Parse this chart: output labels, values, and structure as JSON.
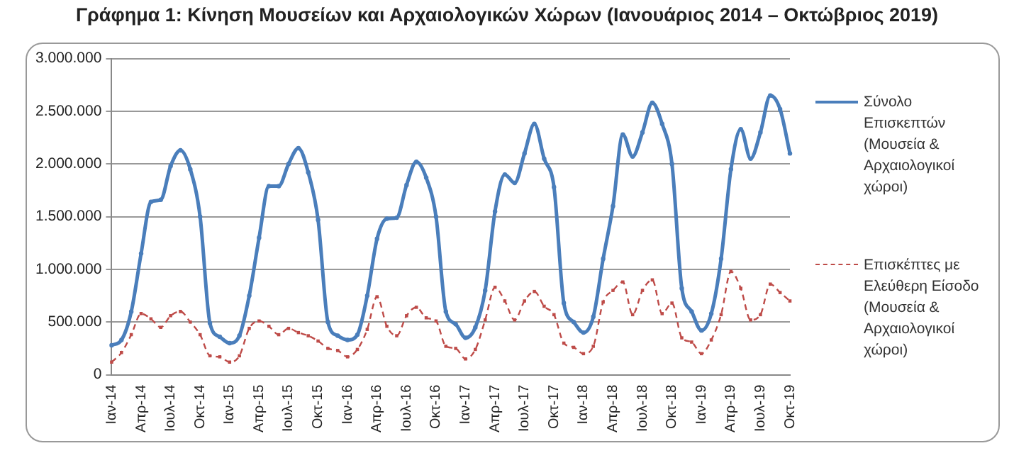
{
  "chart_data": {
    "type": "line",
    "title": "Γράφημα 1: Κίνηση Μουσείων και Αρχαιολογικών Χώρων (Ιανουάριος 2014 – Οκτώβριος 2019)",
    "categories": [
      "Ιαν-14",
      null,
      null,
      "Απρ-14",
      null,
      null,
      "Ιουλ-14",
      null,
      null,
      "Οκτ-14",
      null,
      null,
      "Ιαν-15",
      null,
      null,
      "Απρ-15",
      null,
      null,
      "Ιουλ-15",
      null,
      null,
      "Οκτ-15",
      null,
      null,
      "Ιαν-16",
      null,
      null,
      "Απρ-16",
      null,
      null,
      "Ιουλ-16",
      null,
      null,
      "Οκτ-16",
      null,
      null,
      "Ιαν-17",
      null,
      null,
      "Απρ-17",
      null,
      null,
      "Ιουλ-17",
      null,
      null,
      "Οκτ-17",
      null,
      null,
      "Ιαν-18",
      null,
      null,
      "Απρ-18",
      null,
      null,
      "Ιουλ-18",
      null,
      null,
      "Οκτ-18",
      null,
      null,
      "Ιαν-19",
      null,
      null,
      "Απρ-19",
      null,
      null,
      "Ιουλ-19",
      null,
      null,
      "Οκτ-19"
    ],
    "series": [
      {
        "name": "Σύνολο Επισκεπτών (Μουσεία & Αρχαιολογικοί χώροι)",
        "color": "#4a7ebb",
        "marker": "circle",
        "line_style": "solid",
        "values": [
          280000,
          330000,
          600000,
          1150000,
          1640000,
          1660000,
          1980000,
          2130000,
          1950000,
          1500000,
          490000,
          360000,
          300000,
          370000,
          750000,
          1300000,
          1790000,
          1790000,
          2000000,
          2150000,
          1920000,
          1470000,
          500000,
          370000,
          330000,
          380000,
          750000,
          1290000,
          1480000,
          1490000,
          1800000,
          2020000,
          1870000,
          1500000,
          600000,
          480000,
          350000,
          450000,
          800000,
          1550000,
          1900000,
          1820000,
          2100000,
          2380000,
          2050000,
          1780000,
          680000,
          500000,
          400000,
          550000,
          1100000,
          1600000,
          2280000,
          2070000,
          2300000,
          2580000,
          2380000,
          2000000,
          820000,
          600000,
          420000,
          580000,
          1100000,
          1950000,
          2330000,
          2050000,
          2300000,
          2650000,
          2520000,
          2100000
        ]
      },
      {
        "name": "Επισκέπτες με Ελεύθερη Είσοδο (Μουσεία & Αρχαιολογικοί χώροι)",
        "color": "#be4b48",
        "marker": "square",
        "line_style": "dashed",
        "values": [
          120000,
          210000,
          380000,
          580000,
          530000,
          450000,
          560000,
          600000,
          500000,
          380000,
          180000,
          170000,
          120000,
          180000,
          440000,
          510000,
          460000,
          380000,
          440000,
          400000,
          370000,
          320000,
          250000,
          230000,
          170000,
          240000,
          430000,
          740000,
          460000,
          370000,
          560000,
          640000,
          540000,
          510000,
          270000,
          250000,
          150000,
          240000,
          520000,
          830000,
          700000,
          520000,
          700000,
          790000,
          650000,
          570000,
          300000,
          260000,
          200000,
          270000,
          690000,
          800000,
          880000,
          570000,
          800000,
          900000,
          580000,
          680000,
          350000,
          310000,
          200000,
          330000,
          570000,
          980000,
          820000,
          520000,
          570000,
          860000,
          780000,
          700000
        ]
      }
    ],
    "ylim": [
      0,
      3000000
    ],
    "yticks": [
      0,
      {
        "value": 500000,
        "label": "500.000"
      },
      {
        "value": 1000000,
        "label": "1.000.000"
      },
      {
        "value": 1500000,
        "label": "1.500.000"
      },
      {
        "value": 2000000,
        "label": "2.000.000"
      },
      {
        "value": 2500000,
        "label": "2.500.000"
      },
      {
        "value": 3000000,
        "label": "3.000.000"
      }
    ],
    "grid": "y",
    "legend": "right"
  }
}
